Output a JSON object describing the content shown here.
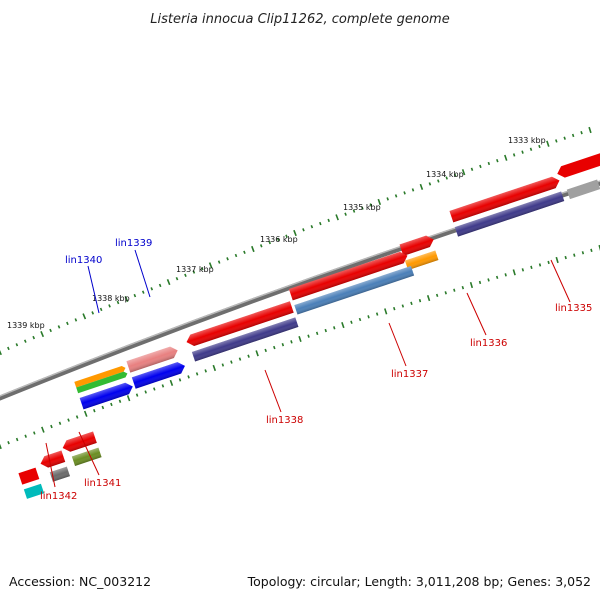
{
  "title": "Listeria innocua Clip11262, complete genome",
  "accession": "Accession: NC_003212",
  "topology": "Topology: circular; Length: 3,011,208 bp; Genes: 3,052",
  "colors": {
    "backbone": "#7f7f7f",
    "ticks": "#2a7a2a",
    "label_red": "#cc0000",
    "label_blue": "#0000cc"
  },
  "kbp_labels": [
    "1333 kbp",
    "1334 kbp",
    "1335 kbp",
    "1336 kbp",
    "1337 kbp",
    "1338 kbp",
    "1339 kbp"
  ],
  "gene_labels": [
    "lin1335",
    "lin1336",
    "lin1337",
    "lin1338",
    "lin1339",
    "lin1340",
    "lin1341",
    "lin1342"
  ]
}
